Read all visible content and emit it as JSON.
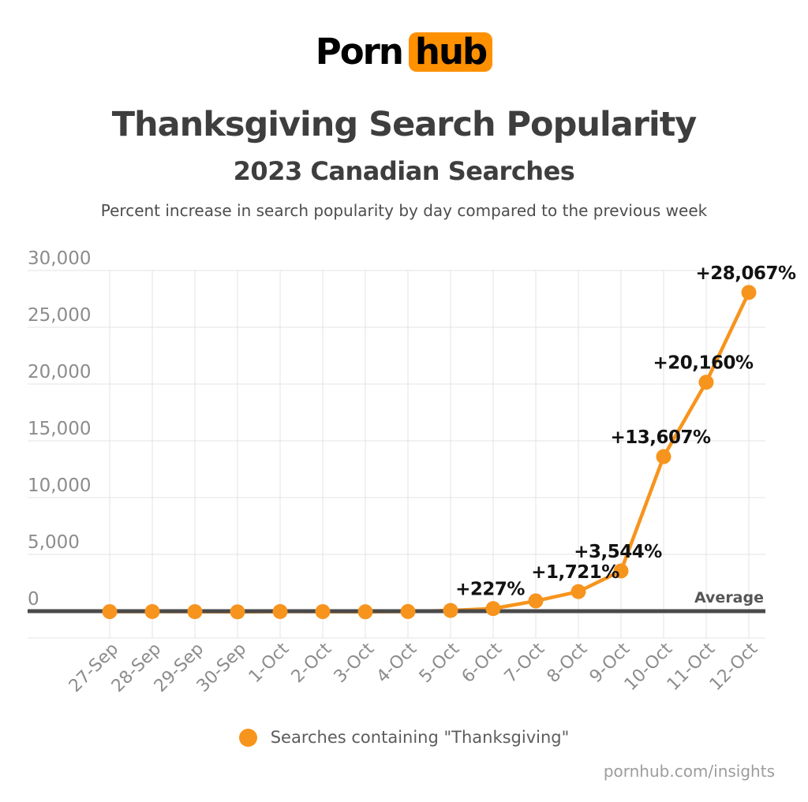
{
  "logo": {
    "part1": "Porn",
    "part2": "hub"
  },
  "header": {
    "title": "Thanksgiving Search Popularity",
    "subtitle": "2023 Canadian Searches",
    "description": "Percent increase in search popularity by day compared to the previous week"
  },
  "chart_data": {
    "type": "line",
    "title": "Thanksgiving Search Popularity",
    "categories": [
      "27-Sep",
      "28-Sep",
      "29-Sep",
      "30-Sep",
      "1-Oct",
      "2-Oct",
      "3-Oct",
      "4-Oct",
      "5-Oct",
      "6-Oct",
      "7-Oct",
      "8-Oct",
      "9-Oct",
      "10-Oct",
      "11-Oct",
      "12-Oct"
    ],
    "values": [
      -40,
      -35,
      -45,
      -60,
      -35,
      -40,
      -55,
      -30,
      60,
      227,
      900,
      1721,
      3544,
      13607,
      20160,
      28067
    ],
    "point_labels": [
      "",
      "",
      "",
      "",
      "",
      "",
      "",
      "",
      "",
      "+227%",
      "",
      "+1,721%",
      "+3,544%",
      "+13,607%",
      "+20,160%",
      "+28,067%"
    ],
    "yticks": [
      {
        "value": 0,
        "label": "0"
      },
      {
        "value": 5000,
        "label": "5,000"
      },
      {
        "value": 10000,
        "label": "10,000"
      },
      {
        "value": 15000,
        "label": "15,000"
      },
      {
        "value": 20000,
        "label": "20,000"
      },
      {
        "value": 25000,
        "label": "25,000"
      },
      {
        "value": 30000,
        "label": "30,000"
      }
    ],
    "ylim": [
      0,
      30000
    ],
    "grid": true,
    "average_line": {
      "value": 0,
      "label": "Average"
    },
    "legend": [
      {
        "label": "Searches containing \"Thanksgiving\"",
        "color": "#F7941D"
      }
    ],
    "legend_position": "bottom"
  },
  "footer": {
    "link": "pornhub.com/insights"
  },
  "colors": {
    "accent_orange": "#F7941D",
    "logo_orange": "#FF9000",
    "grid": "#E3E3E3",
    "average_line": "#4A4A4A",
    "axis_labels": "#8C8C8C",
    "title_text": "#3E3E3E",
    "data_label_text": "#121212"
  }
}
